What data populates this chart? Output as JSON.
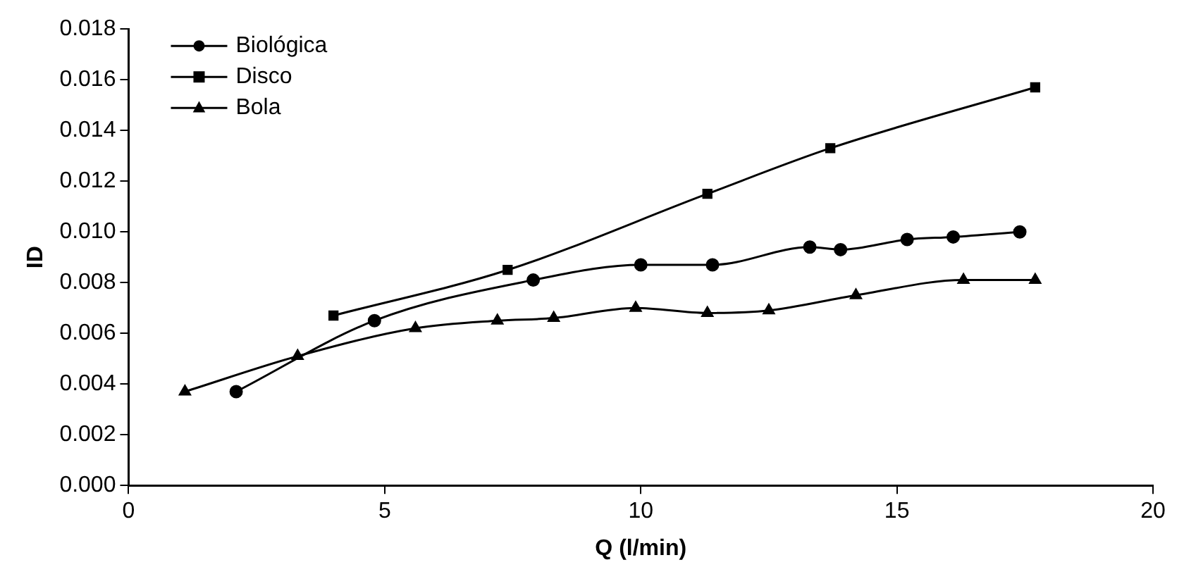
{
  "chart_data": {
    "type": "line",
    "xlabel": "Q (l/min)",
    "ylabel": "ID",
    "xlim": [
      0,
      20
    ],
    "xticks": [
      0,
      5,
      10,
      15,
      20
    ],
    "ylim": [
      0,
      0.018
    ],
    "yticks": [
      {
        "value": 0,
        "label": "0.000"
      },
      {
        "value": 0.002,
        "label": "0.002"
      },
      {
        "value": 0.004,
        "label": "0.004"
      },
      {
        "value": 0.006,
        "label": "0.006"
      },
      {
        "value": 0.008,
        "label": "0.008"
      },
      {
        "value": 0.01,
        "label": "0.010"
      },
      {
        "value": 0.012,
        "label": "0.012"
      },
      {
        "value": 0.014,
        "label": "0.014"
      },
      {
        "value": 0.016,
        "label": "0.016"
      },
      {
        "value": 0.018,
        "label": "0.018"
      }
    ],
    "grid": false,
    "legend": "top left",
    "series": [
      {
        "name": "Biológica",
        "color": "#000000",
        "marker": "circle",
        "x": [
          2.1,
          4.8,
          7.9,
          10.0,
          11.4,
          13.3,
          13.9,
          15.2,
          16.1,
          17.4
        ],
        "values": [
          0.0037,
          0.0065,
          0.0081,
          0.0087,
          0.0087,
          0.0094,
          0.0093,
          0.0097,
          0.0098,
          0.01
        ]
      },
      {
        "name": "Disco",
        "color": "#000000",
        "marker": "square",
        "x": [
          4.0,
          7.4,
          11.3,
          13.7,
          17.7
        ],
        "values": [
          0.0067,
          0.0085,
          0.0115,
          0.0133,
          0.0157
        ]
      },
      {
        "name": "Bola",
        "color": "#000000",
        "marker": "triangle",
        "x": [
          1.1,
          3.3,
          5.6,
          7.2,
          8.3,
          9.9,
          11.3,
          12.5,
          14.2,
          16.3,
          17.7
        ],
        "values": [
          0.0037,
          0.0051,
          0.0062,
          0.0065,
          0.0066,
          0.007,
          0.0068,
          0.0069,
          0.0075,
          0.0081,
          0.0081
        ]
      }
    ]
  }
}
